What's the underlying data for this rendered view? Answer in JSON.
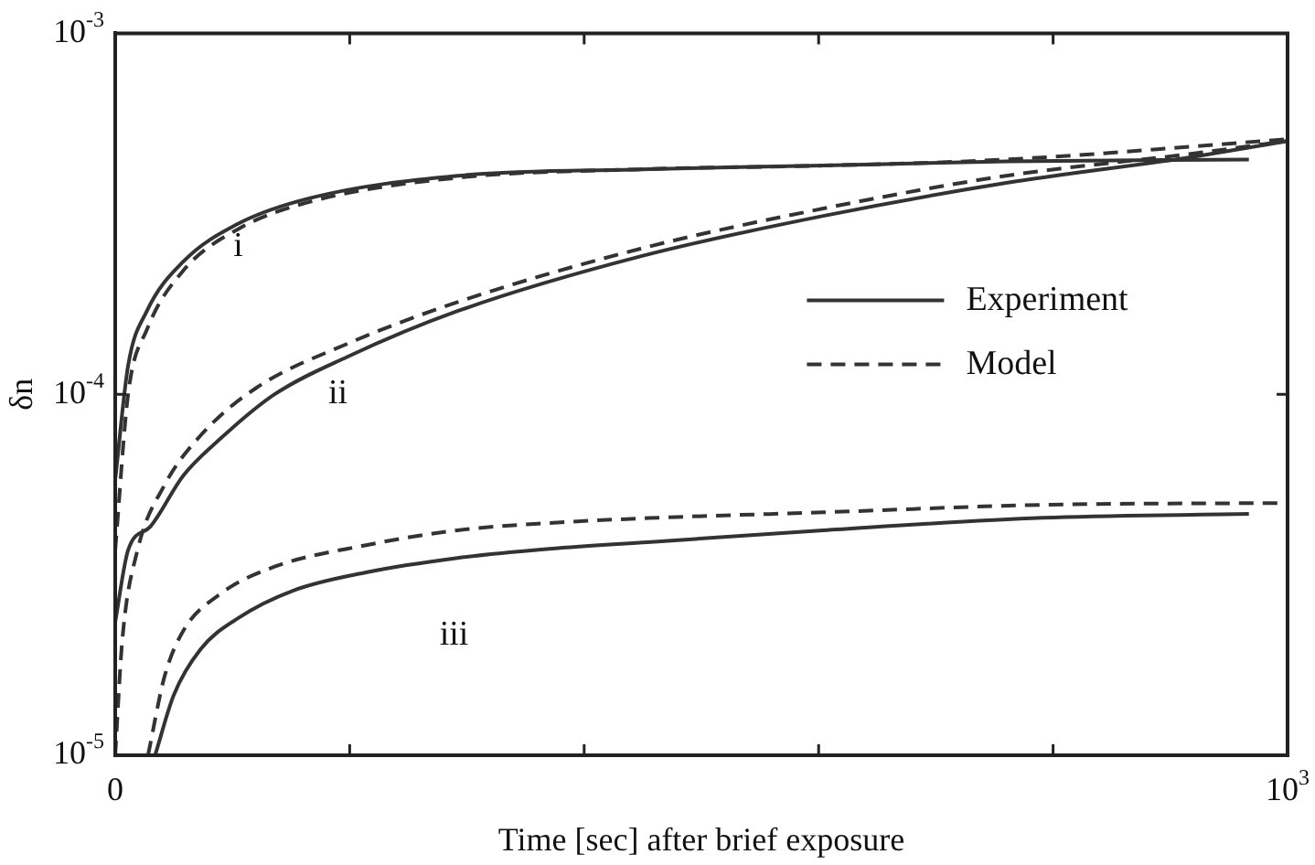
{
  "chart_data": {
    "type": "line",
    "xlabel": "Time [sec] after brief exposure",
    "ylabel": "δn",
    "log": "y",
    "grid": false,
    "legend": "right",
    "marker": "none",
    "xlim": [
      0,
      1000
    ],
    "xticks": [
      0,
      {
        "value": 200,
        "label": null
      },
      {
        "value": 400,
        "label": null
      },
      {
        "value": 600,
        "label": null
      },
      {
        "value": 800,
        "label": null
      },
      {
        "value": 1000,
        "label": "10$^{3}$"
      }
    ],
    "ylim": [
      1e-05,
      0.001
    ],
    "yticks": [
      {
        "value": 1e-05,
        "label": "10$^{-5}$"
      },
      {
        "value": 0.0001,
        "label": "10$^{-4}$"
      },
      {
        "value": 0.001,
        "label": "10$^{-3}$"
      }
    ],
    "series": [
      {
        "name": "Experiment",
        "color": "#333333",
        "line_style": "solid",
        "x": [
          0,
          11,
          27,
          58,
          105,
          167,
          292,
          448,
          604,
          760,
          967
        ],
        "values": [
          5.8e-05,
          0.00012,
          0.00017,
          0.000233,
          0.000297,
          0.00035,
          0.000403,
          0.00042,
          0.00043,
          0.000442,
          0.000447
        ]
      },
      {
        "name": "Model",
        "color": "#333333",
        "line_style": "dashed",
        "x": [
          0,
          11,
          27,
          58,
          105,
          167,
          292,
          448,
          604,
          760,
          1000
        ],
        "values": [
          3.7e-05,
          0.0001,
          0.000151,
          0.00022,
          0.000287,
          0.000342,
          0.000398,
          0.00042,
          0.00043,
          0.000447,
          0.000509
        ]
      },
      {
        "color": "#333333",
        "line_style": "solid",
        "x": [
          0,
          11,
          30,
          58,
          89,
          136,
          198,
          292,
          448,
          604,
          760,
          916,
          1000
        ],
        "values": [
          2.34e-05,
          3.7e-05,
          4.3e-05,
          5.95e-05,
          7.5e-05,
          0.0001,
          0.000127,
          0.00017,
          0.000241,
          0.000312,
          0.000385,
          0.000453,
          0.000503
        ]
      },
      {
        "color": "#333333",
        "line_style": "dashed",
        "x": [
          0,
          6,
          19,
          42,
          73,
          120,
          198,
          292,
          448,
          604,
          760,
          916,
          1000
        ],
        "values": [
          1e-05,
          2.08e-05,
          3.7e-05,
          5.6e-05,
          7.7e-05,
          0.000104,
          0.000138,
          0.00018,
          0.000253,
          0.000327,
          0.000403,
          0.000463,
          0.000503
        ]
      },
      {
        "color": "#333333",
        "line_style": "solid",
        "x": [
          34,
          50,
          73,
          105,
          152,
          214,
          292,
          370,
          463,
          604,
          791,
          967
        ],
        "values": [
          1e-05,
          1.47e-05,
          1.97e-05,
          2.4e-05,
          2.86e-05,
          3.21e-05,
          3.52e-05,
          3.73e-05,
          3.91e-05,
          4.2e-05,
          4.55e-05,
          4.66e-05
        ]
      },
      {
        "color": "#333333",
        "line_style": "dashed",
        "x": [
          28,
          42,
          58,
          89,
          136,
          214,
          292,
          370,
          463,
          604,
          791,
          1000
        ],
        "values": [
          1e-05,
          1.65e-05,
          2.21e-05,
          2.79e-05,
          3.33e-05,
          3.82e-05,
          4.2e-05,
          4.4e-05,
          4.55e-05,
          4.71e-05,
          4.94e-05,
          5e-05
        ]
      }
    ],
    "annotations": [
      "i",
      "ii",
      "iii"
    ]
  }
}
